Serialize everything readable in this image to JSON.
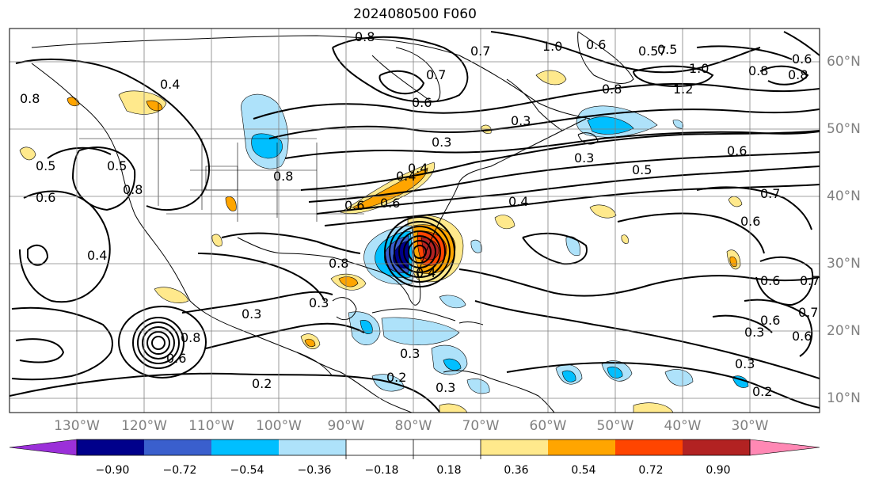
{
  "title": "2024080500 F060",
  "map": {
    "longitude_labels": [
      "130°W",
      "120°W",
      "110°W",
      "100°W",
      "90°W",
      "80°W",
      "70°W",
      "60°W",
      "50°W",
      "40°W",
      "30°W"
    ],
    "latitude_labels": [
      "60°N",
      "50°N",
      "40°N",
      "30°N",
      "20°N",
      "10°N"
    ],
    "contour_labels": [
      "0.8",
      "1.0",
      "0.7",
      "0.57",
      "0.6",
      "0.4",
      "0.8",
      "0.7",
      "0.6",
      "1.0",
      "0.8",
      "1.2",
      "0.8",
      "0.8",
      "0.3",
      "0.3",
      "0.5",
      "0.3",
      "0.6",
      "0.5",
      "0.4",
      "0.6",
      "0.8",
      "0.6",
      "0.4",
      "0.7",
      "0.6",
      "0.5",
      "0.4",
      "0.8",
      "0.6",
      "0.4",
      "0.3",
      "0.8",
      "0.3",
      "0.3",
      "0.8",
      "0.3",
      "0.2",
      "0.6",
      "0.6",
      "0.3",
      "0.2",
      "0.2",
      "0.3",
      "0.6",
      "0.6",
      "0.7",
      "0.4",
      "0.5",
      "0.6",
      "0.7"
    ],
    "colors": {
      "land_border": "#000000",
      "grid": "#808080",
      "contour": "#000000"
    }
  },
  "colorbar": {
    "tick_labels": [
      "−0.90",
      "−0.72",
      "−0.54",
      "−0.36",
      "−0.18",
      "0.18",
      "0.36",
      "0.54",
      "0.72",
      "0.90"
    ],
    "colors": [
      "#9b30d9",
      "#00008b",
      "#3a5fcd",
      "#00bfff",
      "#aee2fa",
      "#ffffff",
      "#ffe98c",
      "#ffa500",
      "#ff4500",
      "#b22222",
      "#ff88b4"
    ]
  }
}
